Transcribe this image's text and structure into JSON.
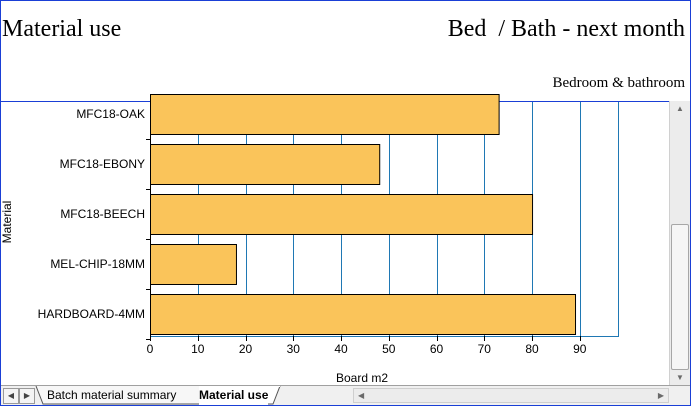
{
  "header": {
    "title": "Material use",
    "right_title": "Bed  / Bath - next month",
    "subtitle": "Bedroom & bathroom"
  },
  "tabs": [
    {
      "label": "Batch material summary",
      "active": false
    },
    {
      "label": "Material use",
      "active": true
    }
  ],
  "colors": {
    "bar_fill": "#fac45a",
    "bar_stroke": "#000000",
    "grid": "#1f78b4",
    "frame": "#1a3fd6"
  },
  "chart_data": {
    "type": "bar",
    "orientation": "horizontal",
    "categories": [
      "MFC18-OAK",
      "MFC18-EBONY",
      "MFC18-BEECH",
      "MEL-CHIP-18MM",
      "HARDBOARD-4MM"
    ],
    "values": [
      73,
      48,
      80,
      18,
      89
    ],
    "xlabel": "Board m2",
    "ylabel": "Material",
    "xlim": [
      0,
      98
    ],
    "xticks": [
      0,
      10,
      20,
      30,
      40,
      50,
      60,
      70,
      80,
      90
    ],
    "grid": true
  }
}
